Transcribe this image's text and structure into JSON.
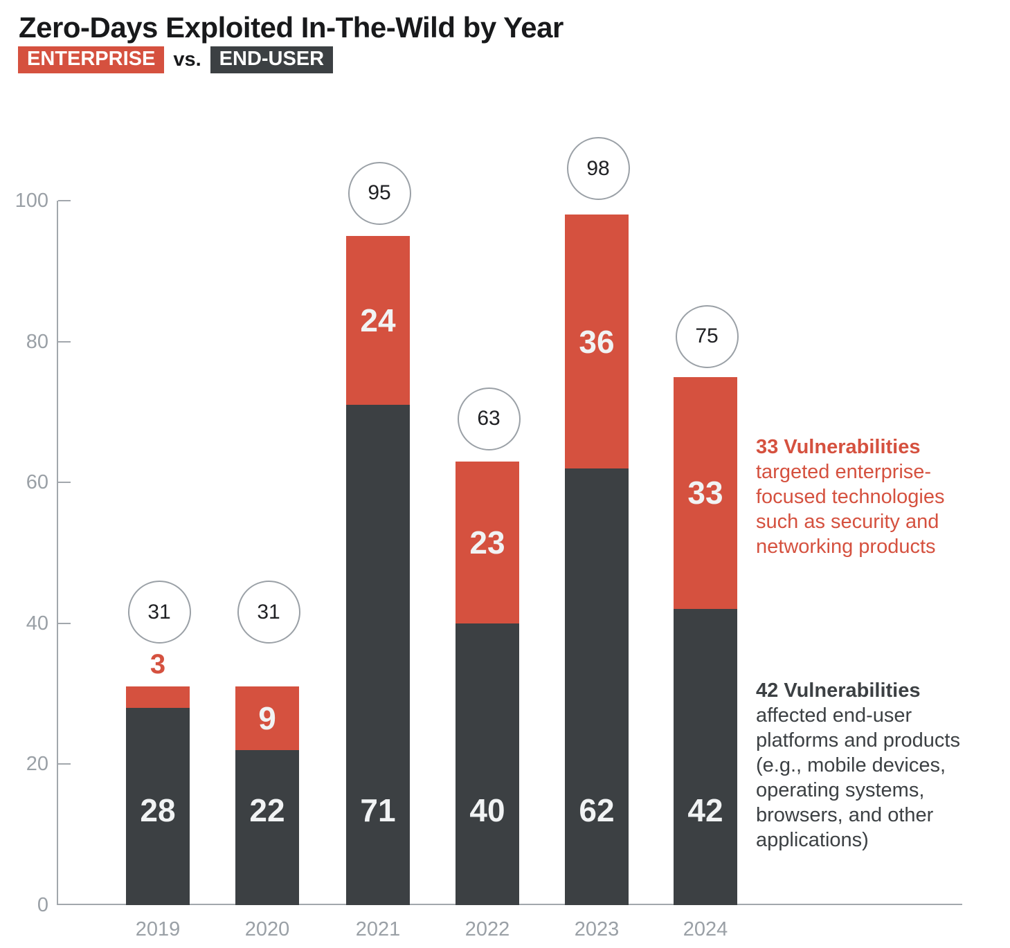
{
  "title": "Zero-Days Exploited In-The-Wild by Year",
  "legend": {
    "enterprise_label": "ENTERPRISE",
    "vs_label": "vs.",
    "end_user_label": "END-USER"
  },
  "colors": {
    "enterprise": "#D5513F",
    "end_user": "#3C4043",
    "axis": "#A2A7AC",
    "tick_label": "#9AA0A6",
    "circle_border": "#9AA0A6",
    "circle_text": "#202124",
    "bar_label": "#F1F3F4"
  },
  "chart_data": {
    "type": "bar",
    "stacked": true,
    "title": "Zero-Days Exploited In-The-Wild by Year",
    "subtitle": "ENTERPRISE vs. END-USER",
    "categories": [
      "2019",
      "2020",
      "2021",
      "2022",
      "2023",
      "2024"
    ],
    "series": [
      {
        "name": "END-USER",
        "values": [
          28,
          22,
          71,
          40,
          62,
          42
        ],
        "color": "#3C4043"
      },
      {
        "name": "ENTERPRISE",
        "values": [
          3,
          9,
          24,
          23,
          36,
          33
        ],
        "color": "#D5513F"
      }
    ],
    "totals": [
      31,
      31,
      95,
      63,
      98,
      75
    ],
    "xlabel": "",
    "ylabel": "",
    "ylim": [
      0,
      100
    ],
    "yticks": [
      0,
      20,
      40,
      60,
      80,
      100
    ],
    "grid": false,
    "legend_position": "top-left-badges",
    "total_marker": "circle-above-bar"
  },
  "annotations": {
    "enterprise": {
      "heading": "33 Vulnerabilities",
      "body": "targeted enterprise-\nfocused technologies\nsuch as security and\nnetworking products"
    },
    "end_user": {
      "heading": "42 Vulnerabilities",
      "body": "affected end-user\nplatforms and products\n(e.g., mobile devices,\noperating systems,\nbrowsers, and other\napplications)"
    }
  }
}
